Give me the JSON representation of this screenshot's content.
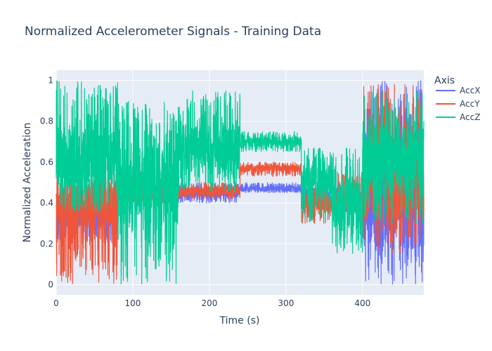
{
  "chart_data": {
    "type": "line",
    "title": "Normalized Accelerometer Signals - Training Data",
    "xlabel": "Time (s)",
    "ylabel": "Normalized Acceleration",
    "xlim": [
      0,
      480
    ],
    "ylim": [
      -0.05,
      1.05
    ],
    "xticks": [
      0,
      100,
      200,
      300,
      400
    ],
    "yticks": [
      0,
      0.2,
      0.4,
      0.6,
      0.8,
      1
    ],
    "xtick_labels": [
      "0",
      "100",
      "200",
      "300",
      "400"
    ],
    "ytick_labels": [
      "0",
      "0.2",
      "0.4",
      "0.6",
      "0.8",
      "1"
    ],
    "grid": true,
    "background_color": "#e5ecf6",
    "legend": {
      "title": "Axis",
      "position": "right"
    },
    "series": [
      {
        "name": "AccX",
        "color": "#636efa",
        "segments": [
          {
            "x": [
              0,
              80
            ],
            "center": 0.33,
            "lo": 0.2,
            "hi": 0.42
          },
          {
            "x": [
              80,
              160
            ],
            "center": 0.45,
            "lo": 0.38,
            "hi": 0.55
          },
          {
            "x": [
              160,
              240
            ],
            "center": 0.45,
            "lo": 0.4,
            "hi": 0.5
          },
          {
            "x": [
              240,
              320
            ],
            "center": 0.47,
            "lo": 0.45,
            "hi": 0.5
          },
          {
            "x": [
              320,
              360
            ],
            "center": 0.45,
            "lo": 0.4,
            "hi": 0.5
          },
          {
            "x": [
              360,
              400
            ],
            "center": 0.42,
            "lo": 0.35,
            "hi": 0.5
          },
          {
            "x": [
              400,
              480
            ],
            "center": 0.4,
            "lo": 0.0,
            "hi": 1.0
          }
        ]
      },
      {
        "name": "AccY",
        "color": "#ef553b",
        "segments": [
          {
            "x": [
              0,
              80
            ],
            "center": 0.4,
            "lo": 0.0,
            "hi": 0.55
          },
          {
            "x": [
              80,
              160
            ],
            "center": 0.45,
            "lo": 0.4,
            "hi": 0.55
          },
          {
            "x": [
              160,
              240
            ],
            "center": 0.46,
            "lo": 0.42,
            "hi": 0.5
          },
          {
            "x": [
              240,
              320
            ],
            "center": 0.57,
            "lo": 0.53,
            "hi": 0.6
          },
          {
            "x": [
              320,
              360
            ],
            "center": 0.4,
            "lo": 0.3,
            "hi": 0.5
          },
          {
            "x": [
              360,
              400
            ],
            "center": 0.4,
            "lo": 0.35,
            "hi": 0.55
          },
          {
            "x": [
              400,
              480
            ],
            "center": 0.5,
            "lo": 0.15,
            "hi": 0.98
          }
        ]
      },
      {
        "name": "AccZ",
        "color": "#00cc96",
        "segments": [
          {
            "x": [
              0,
              80
            ],
            "center": 0.62,
            "lo": 0.35,
            "hi": 1.0
          },
          {
            "x": [
              80,
              160
            ],
            "center": 0.5,
            "lo": 0.0,
            "hi": 0.9
          },
          {
            "x": [
              160,
              240
            ],
            "center": 0.67,
            "lo": 0.45,
            "hi": 0.95
          },
          {
            "x": [
              240,
              320
            ],
            "center": 0.7,
            "lo": 0.65,
            "hi": 0.75
          },
          {
            "x": [
              320,
              360
            ],
            "center": 0.5,
            "lo": 0.3,
            "hi": 0.67
          },
          {
            "x": [
              360,
              400
            ],
            "center": 0.4,
            "lo": 0.15,
            "hi": 0.67
          },
          {
            "x": [
              400,
              480
            ],
            "center": 0.62,
            "lo": 0.3,
            "hi": 0.95
          }
        ]
      }
    ]
  }
}
